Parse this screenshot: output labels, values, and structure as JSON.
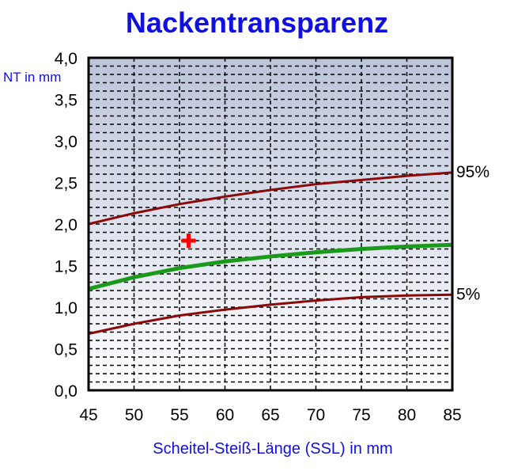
{
  "chart_data": {
    "type": "line",
    "title": "Nackentransparenz",
    "xlabel": "Scheitel-Steiß-Länge (SSL) in mm",
    "ylabel": "NT in mm",
    "xlim": [
      45,
      85
    ],
    "ylim": [
      0,
      4
    ],
    "x_ticks": [
      "45",
      "50",
      "55",
      "60",
      "65",
      "70",
      "75",
      "80",
      "85"
    ],
    "y_ticks": [
      "0,0",
      "0,5",
      "1,0",
      "1,5",
      "2,0",
      "2,5",
      "3,0",
      "3,5",
      "4,0"
    ],
    "grid": {
      "horizontal_step": 0.1,
      "vertical_step": 5,
      "style": "dashed"
    },
    "x": [
      45,
      50,
      55,
      60,
      65,
      70,
      75,
      80,
      85
    ],
    "series": [
      {
        "name": "95%",
        "color": "#8b0a0a",
        "values": [
          2.0,
          2.13,
          2.24,
          2.33,
          2.41,
          2.48,
          2.53,
          2.58,
          2.62
        ]
      },
      {
        "name": "",
        "color": "#1a9a1a",
        "values": [
          1.22,
          1.36,
          1.47,
          1.55,
          1.61,
          1.66,
          1.7,
          1.73,
          1.75
        ]
      },
      {
        "name": "5%",
        "color": "#8b0a0a",
        "values": [
          0.68,
          0.8,
          0.9,
          0.97,
          1.03,
          1.08,
          1.12,
          1.14,
          1.15
        ]
      }
    ],
    "marker": {
      "x": 56,
      "y": 1.8,
      "color": "#ff0000",
      "symbol": "plus"
    },
    "background": {
      "top": "#bcc4da",
      "bottom": "#ffffff"
    }
  }
}
